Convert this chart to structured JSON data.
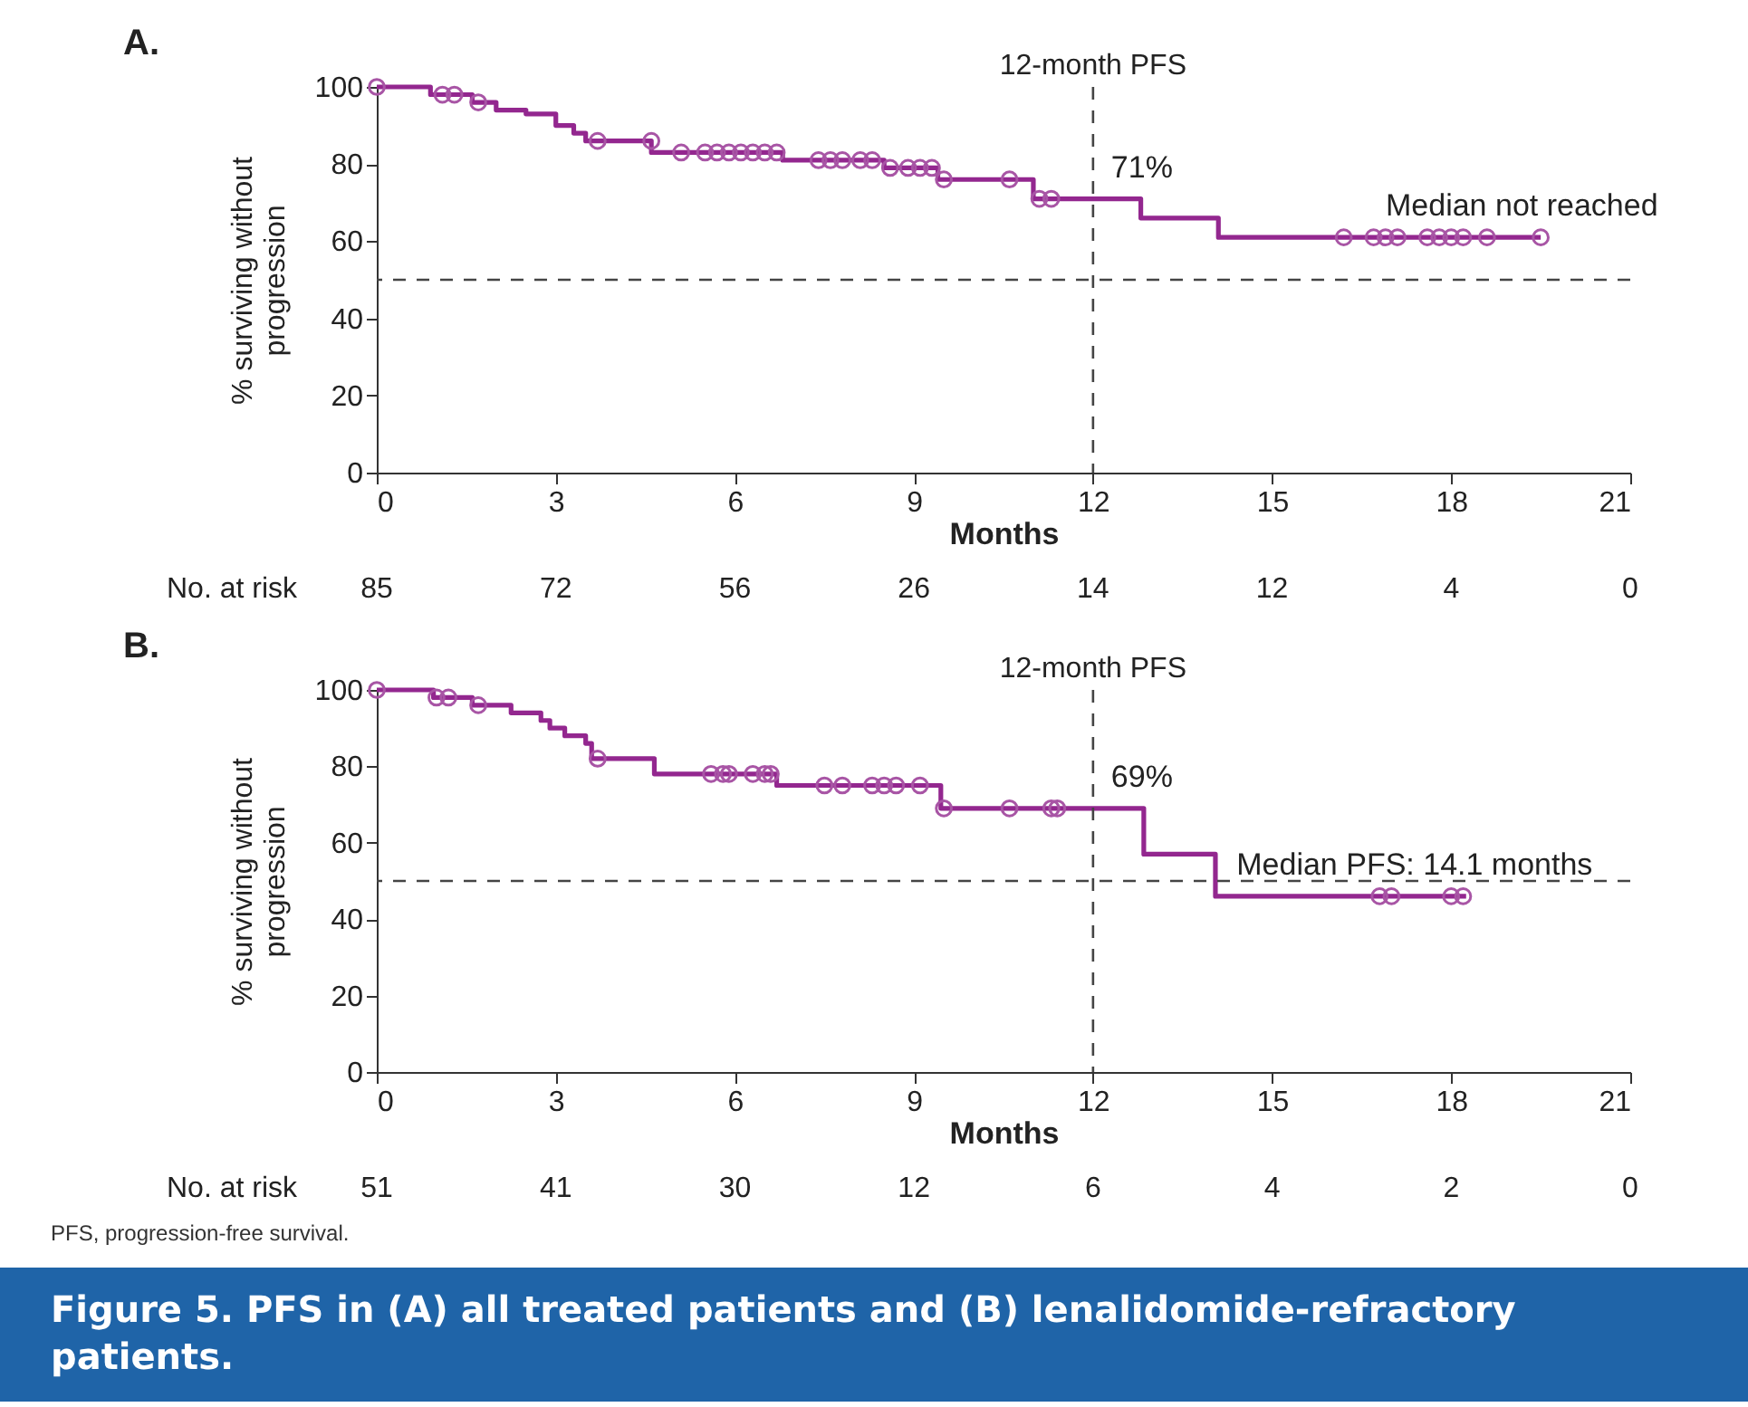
{
  "chart_data": [
    {
      "type": "step",
      "title": "A.",
      "xlabel": "Months",
      "ylabel": "% surviving without progression",
      "xlim": [
        0,
        21
      ],
      "xticks": [
        0,
        3,
        6,
        9,
        12,
        15,
        18,
        21
      ],
      "ylim": [
        0,
        100
      ],
      "yticks": [
        0,
        20,
        40,
        60,
        80,
        100
      ],
      "series": [
        {
          "color": "#93278f",
          "x": [
            0,
            0.9,
            1.6,
            2.0,
            2.5,
            3.0,
            3.3,
            3.5,
            4.6,
            6.8,
            8.5,
            9.4,
            11.0,
            12.8,
            14.1,
            19.5
          ],
          "values": [
            100,
            98,
            96,
            94,
            93,
            90,
            88,
            86,
            83,
            81,
            79,
            76,
            71,
            66,
            61,
            61
          ]
        },
        {
          "type": "scatter",
          "marker": "circle",
          "color": "#a855a5",
          "x": [
            0,
            1.1,
            1.3,
            1.7,
            3.7,
            4.6,
            5.1,
            5.5,
            5.7,
            5.9,
            6.1,
            6.3,
            6.5,
            6.7,
            7.4,
            7.6,
            7.8,
            8.1,
            8.3,
            8.6,
            8.9,
            9.1,
            9.3,
            9.5,
            10.6,
            11.1,
            11.3,
            16.2,
            16.7,
            16.9,
            17.1,
            17.6,
            17.8,
            18.0,
            18.2,
            18.6,
            19.5
          ],
          "values": [
            100,
            98,
            98,
            96,
            86,
            86,
            83,
            83,
            83,
            83,
            83,
            83,
            83,
            83,
            81,
            81,
            81,
            81,
            81,
            79,
            79,
            79,
            79,
            76,
            76,
            71,
            71,
            61,
            61,
            61,
            61,
            61,
            61,
            61,
            61,
            61,
            61
          ]
        }
      ],
      "ref_lines": [
        {
          "axis": "x",
          "value": 12,
          "label": "12-month PFS",
          "color": "#444444",
          "line_style": "dashed"
        },
        {
          "axis": "y",
          "value": 50,
          "color": "#444444",
          "line_style": "dashed"
        }
      ],
      "annotations": [
        {
          "text": "71%",
          "x": 12,
          "y": 71
        },
        {
          "text": "Median not reached",
          "x": 16.6,
          "y": 61
        },
        "No. at risk",
        "85",
        "72",
        "56",
        "26",
        "14",
        "12",
        "4",
        "0"
      ]
    },
    {
      "type": "step",
      "title": "B.",
      "xlabel": "Months",
      "ylabel": "% surviving without progression",
      "xlim": [
        0,
        21
      ],
      "xticks": [
        0,
        3,
        6,
        9,
        12,
        15,
        18,
        21
      ],
      "ylim": [
        0,
        100
      ],
      "yticks": [
        0,
        20,
        40,
        60,
        80,
        100
      ],
      "series": [
        {
          "color": "#93278f",
          "x": [
            0,
            0.95,
            1.6,
            2.25,
            2.75,
            2.9,
            3.15,
            3.5,
            3.6,
            4.65,
            6.7,
            9.45,
            12.85,
            14.05,
            18.25
          ],
          "values": [
            100,
            98,
            96,
            94,
            92,
            90,
            88,
            86,
            82,
            78,
            75,
            69,
            57,
            46,
            46
          ]
        },
        {
          "type": "scatter",
          "marker": "circle",
          "color": "#a855a5",
          "x": [
            0,
            1.0,
            1.2,
            1.7,
            3.7,
            5.6,
            5.8,
            5.9,
            6.3,
            6.5,
            6.6,
            7.5,
            7.8,
            8.3,
            8.5,
            8.7,
            9.1,
            9.5,
            10.6,
            11.3,
            11.4,
            16.8,
            17.0,
            18.0,
            18.2
          ],
          "values": [
            100,
            98,
            98,
            96,
            82,
            78,
            78,
            78,
            78,
            78,
            78,
            75,
            75,
            75,
            75,
            75,
            75,
            69,
            69,
            69,
            69,
            46,
            46,
            46,
            46
          ]
        }
      ],
      "ref_lines": [
        {
          "axis": "x",
          "value": 12,
          "label": "12-month PFS",
          "color": "#444444",
          "line_style": "dashed"
        },
        {
          "axis": "y",
          "value": 50,
          "color": "#444444",
          "line_style": "dashed"
        }
      ],
      "annotations": [
        {
          "text": "69%",
          "x": 12,
          "y": 69
        },
        {
          "text": "Median PFS: 14.1 months",
          "x": 14.1,
          "y": 46
        },
        "No. at risk",
        "51",
        "41",
        "30",
        "12",
        "6",
        "4",
        "2",
        "0",
        "PFS, progression-free survival.",
        "Figure 5. PFS in (A) all treated patients and (B) lenalidomide-refractory patients."
      ]
    }
  ]
}
